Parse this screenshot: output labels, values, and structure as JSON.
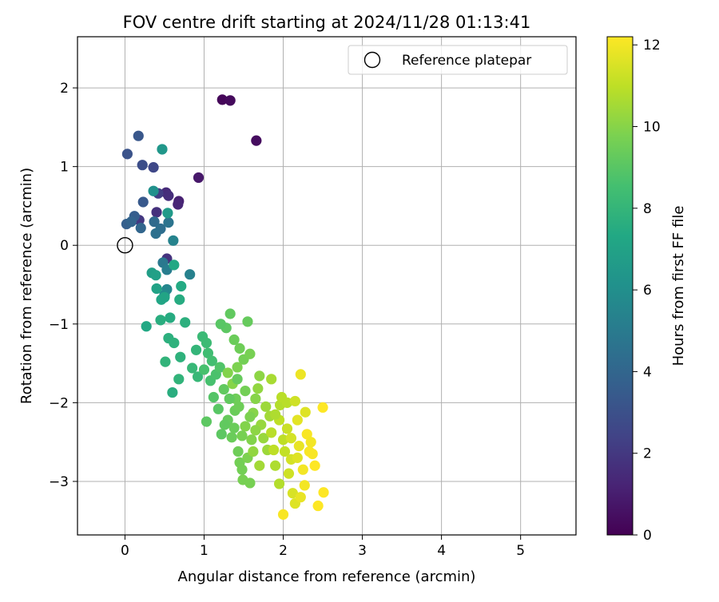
{
  "chart_data": {
    "type": "scatter",
    "title": "FOV centre drift starting at 2024/11/28 01:13:41",
    "xlabel": "Angular distance from reference (arcmin)",
    "ylabel": "Rotation from reference (arcmin)",
    "xlim": [
      -0.6,
      5.7
    ],
    "ylim": [
      -3.68,
      2.65
    ],
    "xticks": [
      0,
      1,
      2,
      3,
      4,
      5
    ],
    "yticks": [
      -3,
      -2,
      -1,
      0,
      1,
      2
    ],
    "grid": true,
    "legend": {
      "position": "top-right",
      "entries": [
        "Reference platepar"
      ]
    },
    "reference_point": {
      "x": 0,
      "y": 0,
      "label": "Reference platepar"
    },
    "colorbar": {
      "label": "Hours from first FF file",
      "colormap": "viridis",
      "range": [
        0,
        12.2
      ],
      "ticks": [
        0,
        2,
        4,
        6,
        8,
        10,
        12
      ]
    },
    "points": [
      {
        "x": 1.23,
        "y": 1.85,
        "hours": 0.2
      },
      {
        "x": 1.33,
        "y": 1.84,
        "hours": 0.3
      },
      {
        "x": 1.66,
        "y": 1.33,
        "hours": 0.4
      },
      {
        "x": 0.93,
        "y": 0.86,
        "hours": 0.8
      },
      {
        "x": 0.68,
        "y": 0.56,
        "hours": 1.1
      },
      {
        "x": 0.67,
        "y": 0.52,
        "hours": 1.3
      },
      {
        "x": 0.52,
        "y": 0.67,
        "hours": 1.5
      },
      {
        "x": 0.55,
        "y": 0.63,
        "hours": 1.6
      },
      {
        "x": 0.4,
        "y": 0.42,
        "hours": 1.7
      },
      {
        "x": 0.53,
        "y": -0.17,
        "hours": 1.8
      },
      {
        "x": 0.18,
        "y": 0.32,
        "hours": 2.0
      },
      {
        "x": 0.42,
        "y": 0.66,
        "hours": 2.2
      },
      {
        "x": 0.36,
        "y": 0.99,
        "hours": 2.6
      },
      {
        "x": 0.22,
        "y": 1.02,
        "hours": 2.9
      },
      {
        "x": 0.03,
        "y": 1.16,
        "hours": 3.1
      },
      {
        "x": 0.17,
        "y": 1.39,
        "hours": 3.3
      },
      {
        "x": 0.23,
        "y": 0.55,
        "hours": 3.4
      },
      {
        "x": 0.12,
        "y": 0.37,
        "hours": 3.6
      },
      {
        "x": 0.02,
        "y": 0.27,
        "hours": 3.7
      },
      {
        "x": 0.08,
        "y": 0.3,
        "hours": 3.9
      },
      {
        "x": 0.2,
        "y": 0.22,
        "hours": 4.0
      },
      {
        "x": 0.37,
        "y": 0.3,
        "hours": 4.2
      },
      {
        "x": 0.45,
        "y": 0.21,
        "hours": 4.4
      },
      {
        "x": 0.39,
        "y": 0.15,
        "hours": 4.5
      },
      {
        "x": 0.55,
        "y": 0.29,
        "hours": 4.7
      },
      {
        "x": 0.48,
        "y": -0.22,
        "hours": 4.9
      },
      {
        "x": 0.53,
        "y": -0.31,
        "hours": 5.1
      },
      {
        "x": 0.82,
        "y": -0.37,
        "hours": 5.3
      },
      {
        "x": 0.61,
        "y": 0.06,
        "hours": 5.4
      },
      {
        "x": 0.53,
        "y": -0.56,
        "hours": 5.6
      },
      {
        "x": 0.5,
        "y": -0.63,
        "hours": 5.8
      },
      {
        "x": 0.36,
        "y": 0.69,
        "hours": 6.1
      },
      {
        "x": 0.47,
        "y": 1.22,
        "hours": 6.4
      },
      {
        "x": 0.54,
        "y": 0.41,
        "hours": 6.6
      },
      {
        "x": 0.34,
        "y": -0.35,
        "hours": 6.8
      },
      {
        "x": 0.39,
        "y": -0.38,
        "hours": 6.9
      },
      {
        "x": 0.4,
        "y": -0.55,
        "hours": 7.0
      },
      {
        "x": 0.46,
        "y": -0.69,
        "hours": 7.2
      },
      {
        "x": 0.5,
        "y": -0.66,
        "hours": 7.1
      },
      {
        "x": 0.62,
        "y": -0.25,
        "hours": 7.3
      },
      {
        "x": 0.71,
        "y": -0.52,
        "hours": 7.4
      },
      {
        "x": 0.69,
        "y": -0.69,
        "hours": 7.5
      },
      {
        "x": 0.57,
        "y": -0.92,
        "hours": 7.5
      },
      {
        "x": 0.45,
        "y": -0.95,
        "hours": 7.6
      },
      {
        "x": 0.27,
        "y": -1.03,
        "hours": 7.3
      },
      {
        "x": 0.76,
        "y": -0.98,
        "hours": 7.7
      },
      {
        "x": 0.55,
        "y": -1.18,
        "hours": 7.7
      },
      {
        "x": 0.62,
        "y": -1.24,
        "hours": 7.8
      },
      {
        "x": 0.7,
        "y": -1.42,
        "hours": 7.8
      },
      {
        "x": 0.51,
        "y": -1.48,
        "hours": 7.9
      },
      {
        "x": 0.68,
        "y": -1.7,
        "hours": 7.9
      },
      {
        "x": 0.6,
        "y": -1.87,
        "hours": 7.6
      },
      {
        "x": 0.9,
        "y": -1.33,
        "hours": 8.0
      },
      {
        "x": 0.85,
        "y": -1.56,
        "hours": 8.1
      },
      {
        "x": 0.92,
        "y": -1.67,
        "hours": 8.1
      },
      {
        "x": 0.98,
        "y": -1.16,
        "hours": 8.2
      },
      {
        "x": 1.03,
        "y": -1.24,
        "hours": 8.3
      },
      {
        "x": 1.05,
        "y": -1.37,
        "hours": 8.4
      },
      {
        "x": 1.1,
        "y": -1.47,
        "hours": 8.5
      },
      {
        "x": 1.0,
        "y": -1.58,
        "hours": 8.6
      },
      {
        "x": 1.08,
        "y": -1.72,
        "hours": 8.6
      },
      {
        "x": 1.15,
        "y": -1.64,
        "hours": 8.7
      },
      {
        "x": 1.2,
        "y": -1.55,
        "hours": 8.8
      },
      {
        "x": 1.12,
        "y": -1.93,
        "hours": 8.9
      },
      {
        "x": 1.18,
        "y": -2.08,
        "hours": 9.0
      },
      {
        "x": 1.03,
        "y": -2.24,
        "hours": 9.1
      },
      {
        "x": 1.22,
        "y": -2.4,
        "hours": 9.1
      },
      {
        "x": 1.25,
        "y": -1.83,
        "hours": 9.2
      },
      {
        "x": 1.3,
        "y": -2.22,
        "hours": 9.3
      },
      {
        "x": 1.35,
        "y": -2.44,
        "hours": 9.4
      },
      {
        "x": 1.39,
        "y": -2.1,
        "hours": 9.4
      },
      {
        "x": 1.4,
        "y": -1.95,
        "hours": 9.5
      },
      {
        "x": 1.43,
        "y": -2.62,
        "hours": 9.5
      },
      {
        "x": 1.45,
        "y": -2.76,
        "hours": 9.6
      },
      {
        "x": 1.48,
        "y": -2.85,
        "hours": 9.6
      },
      {
        "x": 1.49,
        "y": -2.98,
        "hours": 9.7
      },
      {
        "x": 1.58,
        "y": -3.02,
        "hours": 9.7
      },
      {
        "x": 1.55,
        "y": -2.7,
        "hours": 9.8
      },
      {
        "x": 1.6,
        "y": -2.47,
        "hours": 9.9
      },
      {
        "x": 1.52,
        "y": -2.3,
        "hours": 9.9
      },
      {
        "x": 1.62,
        "y": -2.13,
        "hours": 10.0
      },
      {
        "x": 1.65,
        "y": -1.95,
        "hours": 10.0
      },
      {
        "x": 1.33,
        "y": -0.87,
        "hours": 9.2
      },
      {
        "x": 1.28,
        "y": -1.05,
        "hours": 9.1
      },
      {
        "x": 1.55,
        "y": -0.97,
        "hours": 9.3
      },
      {
        "x": 1.21,
        "y": -1.0,
        "hours": 9.0
      },
      {
        "x": 1.38,
        "y": -1.2,
        "hours": 9.4
      },
      {
        "x": 1.45,
        "y": -1.31,
        "hours": 9.5
      },
      {
        "x": 1.5,
        "y": -1.45,
        "hours": 9.6
      },
      {
        "x": 1.58,
        "y": -1.38,
        "hours": 9.7
      },
      {
        "x": 1.42,
        "y": -1.55,
        "hours": 9.8
      },
      {
        "x": 1.3,
        "y": -1.62,
        "hours": 9.9
      },
      {
        "x": 1.36,
        "y": -1.76,
        "hours": 10.0
      },
      {
        "x": 1.7,
        "y": -1.66,
        "hours": 10.1
      },
      {
        "x": 1.68,
        "y": -1.82,
        "hours": 10.2
      },
      {
        "x": 1.72,
        "y": -2.28,
        "hours": 10.3
      },
      {
        "x": 1.75,
        "y": -2.45,
        "hours": 10.3
      },
      {
        "x": 1.8,
        "y": -2.6,
        "hours": 10.4
      },
      {
        "x": 1.83,
        "y": -2.17,
        "hours": 10.5
      },
      {
        "x": 1.85,
        "y": -1.7,
        "hours": 10.6
      },
      {
        "x": 1.9,
        "y": -2.8,
        "hours": 10.7
      },
      {
        "x": 1.95,
        "y": -3.03,
        "hours": 10.8
      },
      {
        "x": 1.96,
        "y": -2.03,
        "hours": 10.8
      },
      {
        "x": 1.98,
        "y": -1.93,
        "hours": 10.9
      },
      {
        "x": 2.0,
        "y": -2.47,
        "hours": 11.0
      },
      {
        "x": 2.02,
        "y": -2.62,
        "hours": 11.1
      },
      {
        "x": 2.05,
        "y": -2.33,
        "hours": 11.2
      },
      {
        "x": 2.07,
        "y": -2.9,
        "hours": 11.3
      },
      {
        "x": 2.1,
        "y": -2.72,
        "hours": 11.4
      },
      {
        "x": 2.12,
        "y": -3.15,
        "hours": 11.5
      },
      {
        "x": 2.15,
        "y": -3.28,
        "hours": 11.6
      },
      {
        "x": 2.18,
        "y": -2.22,
        "hours": 11.7
      },
      {
        "x": 2.2,
        "y": -2.55,
        "hours": 11.8
      },
      {
        "x": 2.22,
        "y": -1.64,
        "hours": 11.9
      },
      {
        "x": 2.25,
        "y": -2.85,
        "hours": 12.0
      },
      {
        "x": 2.27,
        "y": -3.05,
        "hours": 12.0
      },
      {
        "x": 2.3,
        "y": -2.4,
        "hours": 12.1
      },
      {
        "x": 2.33,
        "y": -2.62,
        "hours": 12.1
      },
      {
        "x": 2.37,
        "y": -2.65,
        "hours": 12.1
      },
      {
        "x": 2.4,
        "y": -2.8,
        "hours": 12.2
      },
      {
        "x": 2.44,
        "y": -3.31,
        "hours": 12.2
      },
      {
        "x": 2.5,
        "y": -2.06,
        "hours": 12.2
      },
      {
        "x": 2.51,
        "y": -3.14,
        "hours": 12.2
      },
      {
        "x": 2.0,
        "y": -3.42,
        "hours": 12.1
      },
      {
        "x": 2.22,
        "y": -3.2,
        "hours": 11.8
      },
      {
        "x": 2.05,
        "y": -2.0,
        "hours": 10.9
      },
      {
        "x": 1.95,
        "y": -2.22,
        "hours": 11.0
      },
      {
        "x": 2.15,
        "y": -1.98,
        "hours": 11.3
      },
      {
        "x": 2.28,
        "y": -2.12,
        "hours": 11.6
      },
      {
        "x": 1.85,
        "y": -2.38,
        "hours": 10.9
      },
      {
        "x": 1.78,
        "y": -2.05,
        "hours": 10.4
      },
      {
        "x": 1.62,
        "y": -2.62,
        "hours": 10.2
      },
      {
        "x": 1.7,
        "y": -2.8,
        "hours": 10.5
      },
      {
        "x": 1.88,
        "y": -2.6,
        "hours": 11.0
      },
      {
        "x": 2.35,
        "y": -2.5,
        "hours": 12.0
      },
      {
        "x": 2.1,
        "y": -2.45,
        "hours": 11.4
      },
      {
        "x": 2.18,
        "y": -2.7,
        "hours": 11.6
      },
      {
        "x": 1.9,
        "y": -2.15,
        "hours": 10.7
      },
      {
        "x": 1.52,
        "y": -1.85,
        "hours": 9.6
      },
      {
        "x": 1.44,
        "y": -2.05,
        "hours": 9.5
      },
      {
        "x": 1.38,
        "y": -2.32,
        "hours": 9.4
      },
      {
        "x": 1.32,
        "y": -1.95,
        "hours": 9.2
      },
      {
        "x": 1.58,
        "y": -2.18,
        "hours": 9.8
      },
      {
        "x": 1.48,
        "y": -2.42,
        "hours": 9.7
      },
      {
        "x": 1.65,
        "y": -2.35,
        "hours": 10.1
      },
      {
        "x": 1.42,
        "y": -1.7,
        "hours": 9.3
      },
      {
        "x": 1.26,
        "y": -2.28,
        "hours": 9.2
      }
    ]
  }
}
